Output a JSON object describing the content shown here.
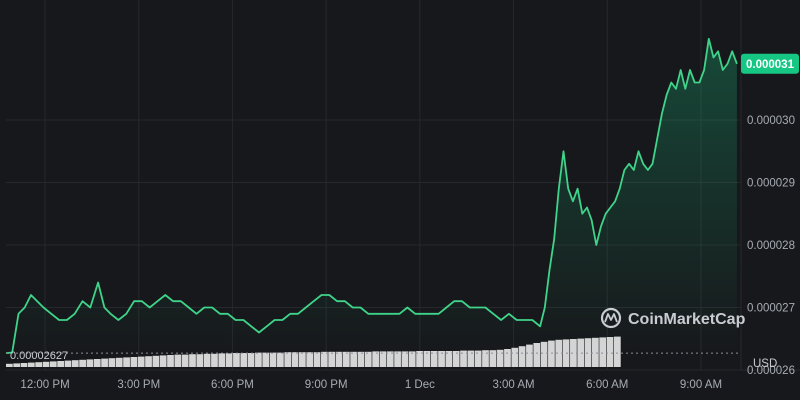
{
  "chart_data": {
    "type": "area",
    "currency_label": "USD",
    "brand": "CoinMarketCap",
    "open_label": "0.00002627",
    "last_price_label": "0.000031",
    "y_ticks": [
      "0.000026",
      "0.000027",
      "0.000028",
      "0.000029",
      "0.000030"
    ],
    "ylim": [
      2.56e-05,
      3.16e-05
    ],
    "x_ticks": [
      "12:00 PM",
      "3:00 PM",
      "6:00 PM",
      "9:00 PM",
      "1 Dec",
      "3:00 AM",
      "6:00 AM",
      "9:00 AM"
    ],
    "x_tick_hours": [
      12,
      15,
      18,
      21,
      24,
      27,
      30,
      33
    ],
    "xlim": [
      10.75,
      34.25
    ],
    "colors": {
      "line": "#3fd48a",
      "badge": "#16c784",
      "background": "#17181b",
      "volume": "#e6e6e6",
      "grid": "#26282c"
    },
    "series": [
      {
        "x": [
          10.75,
          10.95,
          11.15,
          11.35,
          11.55,
          11.75,
          11.95,
          12.2,
          12.45,
          12.7,
          12.95,
          13.2,
          13.45,
          13.7,
          13.9,
          14.1,
          14.35,
          14.6,
          14.85,
          15.1,
          15.35,
          15.6,
          15.85,
          16.1,
          16.35,
          16.6,
          16.85,
          17.1,
          17.35,
          17.6,
          17.85,
          18.1,
          18.35,
          18.6,
          18.85,
          19.1,
          19.35,
          19.6,
          19.85,
          20.1,
          20.35,
          20.6,
          20.85,
          21.1,
          21.35,
          21.6,
          21.85,
          22.1,
          22.35,
          22.6,
          22.85,
          23.1,
          23.35,
          23.6,
          23.85,
          24.1,
          24.35,
          24.6,
          24.85,
          25.1,
          25.35,
          25.6,
          25.85,
          26.1,
          26.35,
          26.6,
          26.85,
          27.1,
          27.35,
          27.6,
          27.85,
          28.0,
          28.15,
          28.3,
          28.45,
          28.6,
          28.75,
          28.9,
          29.05,
          29.2,
          29.35,
          29.5,
          29.65,
          29.8,
          29.95,
          30.1,
          30.25,
          30.4,
          30.55,
          30.7,
          30.85,
          31.0,
          31.15,
          31.3,
          31.45,
          31.6,
          31.75,
          31.9,
          32.05,
          32.2,
          32.35,
          32.5,
          32.65,
          32.8,
          32.95,
          33.1,
          33.25,
          33.4,
          33.55,
          33.7,
          33.85,
          34.0,
          34.15
        ],
        "values": [
          2.627e-05,
          2.628e-05,
          2.69e-05,
          2.7e-05,
          2.72e-05,
          2.71e-05,
          2.7e-05,
          2.69e-05,
          2.68e-05,
          2.68e-05,
          2.69e-05,
          2.71e-05,
          2.7e-05,
          2.74e-05,
          2.7e-05,
          2.69e-05,
          2.68e-05,
          2.69e-05,
          2.71e-05,
          2.71e-05,
          2.7e-05,
          2.71e-05,
          2.72e-05,
          2.71e-05,
          2.71e-05,
          2.7e-05,
          2.69e-05,
          2.7e-05,
          2.7e-05,
          2.69e-05,
          2.69e-05,
          2.68e-05,
          2.68e-05,
          2.67e-05,
          2.66e-05,
          2.67e-05,
          2.68e-05,
          2.68e-05,
          2.69e-05,
          2.69e-05,
          2.7e-05,
          2.71e-05,
          2.72e-05,
          2.72e-05,
          2.71e-05,
          2.71e-05,
          2.7e-05,
          2.7e-05,
          2.69e-05,
          2.69e-05,
          2.69e-05,
          2.69e-05,
          2.69e-05,
          2.7e-05,
          2.69e-05,
          2.69e-05,
          2.69e-05,
          2.69e-05,
          2.7e-05,
          2.71e-05,
          2.71e-05,
          2.7e-05,
          2.7e-05,
          2.7e-05,
          2.69e-05,
          2.68e-05,
          2.69e-05,
          2.68e-05,
          2.68e-05,
          2.68e-05,
          2.67e-05,
          2.7e-05,
          2.76e-05,
          2.81e-05,
          2.89e-05,
          2.95e-05,
          2.89e-05,
          2.87e-05,
          2.89e-05,
          2.85e-05,
          2.86e-05,
          2.84e-05,
          2.8e-05,
          2.83e-05,
          2.85e-05,
          2.86e-05,
          2.87e-05,
          2.89e-05,
          2.92e-05,
          2.93e-05,
          2.92e-05,
          2.95e-05,
          2.93e-05,
          2.92e-05,
          2.93e-05,
          2.97e-05,
          3.01e-05,
          3.04e-05,
          3.06e-05,
          3.05e-05,
          3.08e-05,
          3.05e-05,
          3.08e-05,
          3.06e-05,
          3.06e-05,
          3.08e-05,
          3.13e-05,
          3.1e-05,
          3.11e-05,
          3.08e-05,
          3.09e-05,
          3.11e-05,
          3.09e-05
        ]
      }
    ],
    "volume": {
      "x_start": 10.75,
      "x_end": 30.45,
      "values": [
        0.08,
        0.09,
        0.1,
        0.11,
        0.12,
        0.13,
        0.14,
        0.15,
        0.16,
        0.17,
        0.18,
        0.19,
        0.2,
        0.21,
        0.22,
        0.23,
        0.24,
        0.25,
        0.26,
        0.27,
        0.28,
        0.29,
        0.3,
        0.31,
        0.31,
        0.32,
        0.32,
        0.33,
        0.33,
        0.34,
        0.34,
        0.35,
        0.35,
        0.35,
        0.36,
        0.36,
        0.36,
        0.36,
        0.37,
        0.37,
        0.37,
        0.37,
        0.37,
        0.38,
        0.38,
        0.38,
        0.38,
        0.38,
        0.38,
        0.38,
        0.39,
        0.39,
        0.39,
        0.39,
        0.39,
        0.39,
        0.4,
        0.4,
        0.4,
        0.4,
        0.4,
        0.4,
        0.41,
        0.41,
        0.41,
        0.42,
        0.42,
        0.43,
        0.45,
        0.48,
        0.52,
        0.56,
        0.6,
        0.63,
        0.66,
        0.68,
        0.69,
        0.7,
        0.71,
        0.72,
        0.73,
        0.74,
        0.75,
        0.76
      ]
    }
  }
}
